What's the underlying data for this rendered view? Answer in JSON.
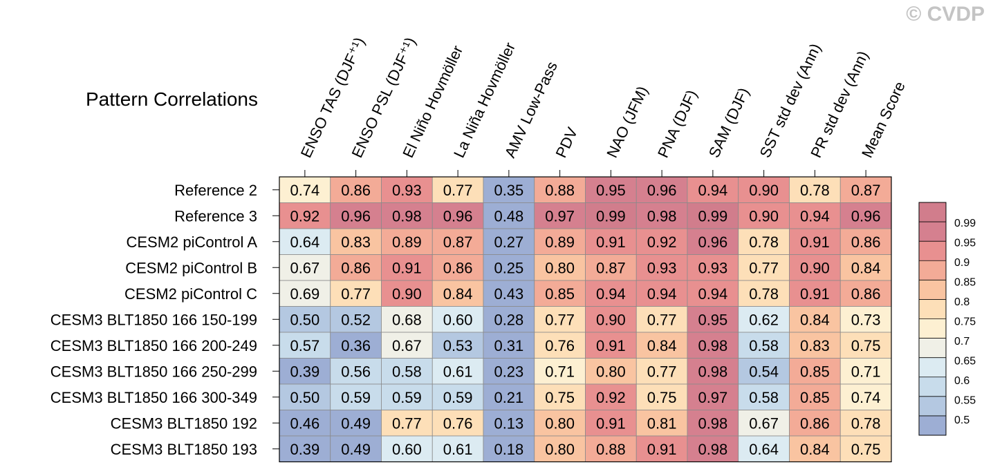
{
  "watermark": "© CVDP",
  "chart_data": {
    "type": "heatmap",
    "title": "Pattern Correlations",
    "columns": [
      "ENSO TAS (DJF⁺¹)",
      "ENSO PSL (DJF⁺¹)",
      "El Niño Hovmöller",
      "La Niña Hovmöller",
      "AMV Low-Pass",
      "PDV",
      "NAO (JFM)",
      "PNA (DJF)",
      "SAM (DJF)",
      "SST std dev (Ann)",
      "PR std dev (Ann)",
      "Mean Score"
    ],
    "rows": [
      "Reference 2",
      "Reference 3",
      "CESM2 piControl A",
      "CESM2 piControl B",
      "CESM2 piControl C",
      "CESM3 BLT1850 166 150-199",
      "CESM3 BLT1850 166 200-249",
      "CESM3 BLT1850 166 250-299",
      "CESM3 BLT1850 166 300-349",
      "CESM3 BLT1850 192",
      "CESM3 BLT1850 193"
    ],
    "values": [
      [
        "0.74",
        "0.86",
        "0.93",
        "0.77",
        "0.35",
        "0.88",
        "0.95",
        "0.96",
        "0.94",
        "0.90",
        "0.78",
        "0.87"
      ],
      [
        "0.92",
        "0.96",
        "0.98",
        "0.96",
        "0.48",
        "0.97",
        "0.99",
        "0.98",
        "0.99",
        "0.90",
        "0.94",
        "0.96"
      ],
      [
        "0.64",
        "0.83",
        "0.89",
        "0.87",
        "0.27",
        "0.89",
        "0.91",
        "0.92",
        "0.96",
        "0.78",
        "0.91",
        "0.86"
      ],
      [
        "0.67",
        "0.86",
        "0.91",
        "0.86",
        "0.25",
        "0.80",
        "0.87",
        "0.93",
        "0.93",
        "0.77",
        "0.90",
        "0.84"
      ],
      [
        "0.69",
        "0.77",
        "0.90",
        "0.84",
        "0.43",
        "0.85",
        "0.94",
        "0.94",
        "0.94",
        "0.78",
        "0.91",
        "0.86"
      ],
      [
        "0.50",
        "0.52",
        "0.68",
        "0.60",
        "0.28",
        "0.77",
        "0.90",
        "0.77",
        "0.95",
        "0.62",
        "0.84",
        "0.73"
      ],
      [
        "0.57",
        "0.36",
        "0.67",
        "0.53",
        "0.31",
        "0.76",
        "0.91",
        "0.84",
        "0.98",
        "0.58",
        "0.83",
        "0.75"
      ],
      [
        "0.39",
        "0.56",
        "0.58",
        "0.61",
        "0.23",
        "0.71",
        "0.80",
        "0.77",
        "0.98",
        "0.54",
        "0.85",
        "0.71"
      ],
      [
        "0.50",
        "0.59",
        "0.59",
        "0.59",
        "0.21",
        "0.75",
        "0.92",
        "0.75",
        "0.97",
        "0.58",
        "0.85",
        "0.74"
      ],
      [
        "0.46",
        "0.49",
        "0.77",
        "0.76",
        "0.13",
        "0.80",
        "0.91",
        "0.81",
        "0.98",
        "0.67",
        "0.86",
        "0.78"
      ],
      [
        "0.39",
        "0.49",
        "0.60",
        "0.61",
        "0.18",
        "0.80",
        "0.88",
        "0.91",
        "0.98",
        "0.64",
        "0.84",
        "0.75"
      ]
    ],
    "colorbar": {
      "labels": [
        "0.99",
        "0.95",
        "0.9",
        "0.85",
        "0.8",
        "0.75",
        "0.7",
        "0.65",
        "0.6",
        "0.55",
        "0.5"
      ],
      "thresholds": [
        0.5,
        0.55,
        0.6,
        0.65,
        0.7,
        0.75,
        0.8,
        0.85,
        0.9,
        0.95,
        0.99
      ],
      "colors": [
        "#9daed4",
        "#b4c8e1",
        "#c8dceb",
        "#dcebf2",
        "#f0f0e7",
        "#fdf0d2",
        "#fddfb8",
        "#f9c4a1",
        "#f3ab97",
        "#e89090",
        "#d5808f",
        "#d17d8c"
      ]
    }
  }
}
